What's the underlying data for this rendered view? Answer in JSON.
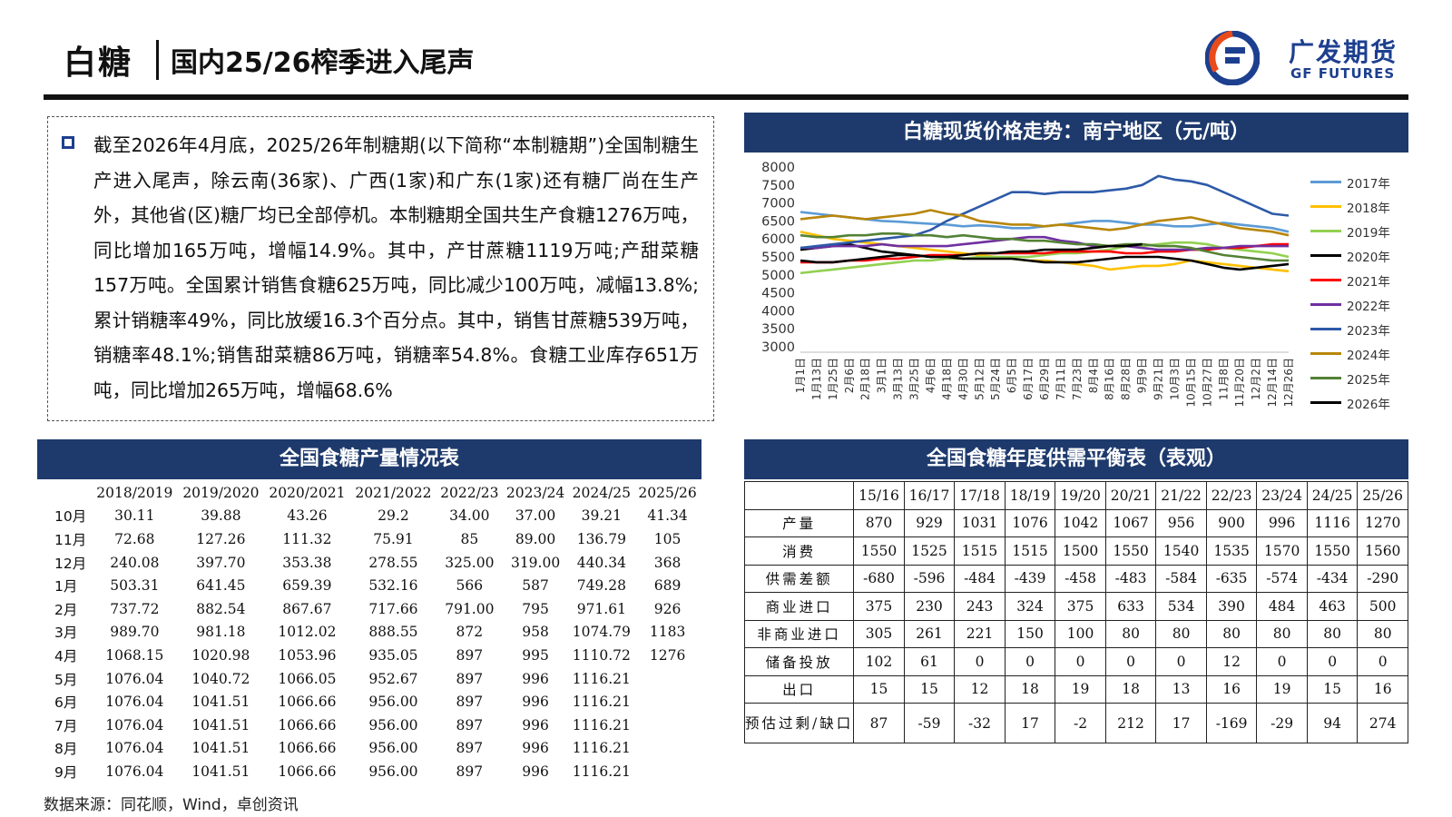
{
  "header": {
    "title": "白糖",
    "subtitle": "国内25/26榨季进入尾声",
    "logo_cn": "广发期货",
    "logo_en": "GF FUTURES"
  },
  "summary": {
    "text": "截至2026年4月底，2025/26年制糖期(以下简称“本制糖期”)全国制糖生产进入尾声，除云南(36家)、广西(1家)和广东(1家)还有糖厂尚在生产外，其他省(区)糖厂均已全部停机。本制糖期全国共生产食糖1276万吨，同比增加165万吨，增幅14.9%。其中，产甘蔗糖1119万吨;产甜菜糖157万吨。全国累计销售食糖625万吨，同比减少100万吨，减幅13.8%;累计销糖率49%，同比放缓16.3个百分点。其中，销售甘蔗糖539万吨，销糖率48.1%;销售甜菜糖86万吨，销糖率54.8%。食糖工业库存651万吨，同比增加265万吨，增幅68.6%"
  },
  "chart": {
    "title": "白糖现货价格走势：南宁地区（元/吨）"
  },
  "chart_data": {
    "type": "line",
    "title": "白糖现货价格走势：南宁地区（元/吨）",
    "ylim": [
      3000,
      8000
    ],
    "y_ticks": [
      "8000",
      "7500",
      "7000",
      "6500",
      "6000",
      "5500",
      "5000",
      "4500",
      "4000",
      "3500",
      "3000"
    ],
    "x_tick_labels": [
      "1月1日",
      "1月13日",
      "1月25日",
      "2月6日",
      "2月18日",
      "3月1日",
      "3月13日",
      "3月25日",
      "4月6日",
      "4月18日",
      "4月30日",
      "5月12日",
      "5月24日",
      "6月5日",
      "6月17日",
      "6月29日",
      "7月11日",
      "7月23日",
      "8月4日",
      "8月16日",
      "8月28日",
      "9月9日",
      "9月21日",
      "10月3日",
      "10月15日",
      "10月27日",
      "11月8日",
      "11月20日",
      "12月2日",
      "12月14日",
      "12月26日"
    ],
    "legend_position": "right",
    "grid": false,
    "series": [
      {
        "name": "2017年",
        "color": "#5b9bd5",
        "values": [
          6750,
          6700,
          6650,
          6600,
          6550,
          6500,
          6480,
          6450,
          6420,
          6400,
          6350,
          6380,
          6350,
          6300,
          6300,
          6350,
          6400,
          6450,
          6500,
          6500,
          6450,
          6400,
          6400,
          6350,
          6350,
          6400,
          6450,
          6400,
          6350,
          6300,
          6200
        ]
      },
      {
        "name": "2018年",
        "color": "#ffc000",
        "values": [
          6200,
          6100,
          6000,
          5950,
          5900,
          5850,
          5800,
          5750,
          5700,
          5650,
          5600,
          5550,
          5500,
          5450,
          5400,
          5400,
          5350,
          5300,
          5250,
          5150,
          5200,
          5250,
          5250,
          5300,
          5400,
          5350,
          5300,
          5250,
          5200,
          5150,
          5100
        ]
      },
      {
        "name": "2019年",
        "color": "#92d050",
        "values": [
          5050,
          5100,
          5150,
          5200,
          5250,
          5300,
          5350,
          5400,
          5400,
          5450,
          5450,
          5500,
          5500,
          5500,
          5500,
          5550,
          5600,
          5600,
          5650,
          5700,
          5800,
          5800,
          5850,
          5900,
          5900,
          5850,
          5750,
          5700,
          5650,
          5600,
          5500
        ]
      },
      {
        "name": "2020年",
        "color": "#000000",
        "values": [
          5700,
          5750,
          5800,
          5850,
          5750,
          5650,
          5600,
          5550,
          5500,
          5500,
          5450,
          5450,
          5450,
          5450,
          5400,
          5350,
          5350,
          5350,
          5400,
          5450,
          5500,
          5500,
          5500,
          5450,
          5400,
          5300,
          5200,
          5150,
          5200,
          5250,
          5300
        ]
      },
      {
        "name": "2021年",
        "color": "#ff0000",
        "values": [
          5350,
          5350,
          5350,
          5400,
          5400,
          5450,
          5450,
          5500,
          5550,
          5550,
          5550,
          5600,
          5600,
          5600,
          5600,
          5600,
          5650,
          5650,
          5650,
          5650,
          5600,
          5600,
          5650,
          5650,
          5700,
          5700,
          5750,
          5750,
          5800,
          5850,
          5850
        ]
      },
      {
        "name": "2022年",
        "color": "#7030a0",
        "values": [
          5750,
          5750,
          5800,
          5800,
          5800,
          5850,
          5800,
          5800,
          5800,
          5800,
          5850,
          5900,
          5950,
          6000,
          6050,
          6050,
          5950,
          5900,
          5800,
          5800,
          5800,
          5750,
          5700,
          5700,
          5700,
          5750,
          5750,
          5800,
          5800,
          5800,
          5800
        ]
      },
      {
        "name": "2023年",
        "color": "#2e5aa8",
        "values": [
          5750,
          5800,
          5850,
          5900,
          5950,
          6000,
          6050,
          6100,
          6250,
          6500,
          6700,
          6900,
          7100,
          7300,
          7300,
          7250,
          7300,
          7300,
          7300,
          7350,
          7400,
          7500,
          7750,
          7650,
          7600,
          7500,
          7300,
          7100,
          6900,
          6700,
          6650
        ]
      },
      {
        "name": "2024年",
        "color": "#b8860b",
        "values": [
          6550,
          6600,
          6650,
          6600,
          6550,
          6600,
          6650,
          6700,
          6800,
          6700,
          6650,
          6500,
          6450,
          6400,
          6400,
          6350,
          6400,
          6350,
          6300,
          6250,
          6300,
          6400,
          6500,
          6550,
          6600,
          6500,
          6400,
          6300,
          6250,
          6200,
          6100
        ]
      },
      {
        "name": "2025年",
        "color": "#548235",
        "values": [
          6100,
          6050,
          6050,
          6100,
          6100,
          6150,
          6150,
          6100,
          6100,
          6050,
          6100,
          6050,
          6000,
          6000,
          5950,
          5950,
          5900,
          5850,
          5850,
          5800,
          5850,
          5850,
          5800,
          5800,
          5750,
          5650,
          5550,
          5500,
          5450,
          5400,
          5400
        ]
      },
      {
        "name": "2026年",
        "color": "#000000",
        "values": [
          5400,
          5350,
          5350,
          5400,
          5450,
          5500,
          5550,
          5550,
          5500,
          5500,
          5550,
          5600,
          5600,
          5650,
          5650,
          5700,
          5700,
          5700,
          5750,
          5800,
          5800,
          5850
        ]
      }
    ]
  },
  "production_table": {
    "title": "全国食糖产量情况表",
    "columns": [
      "",
      "2018/2019",
      "2019/2020",
      "2020/2021",
      "2021/2022",
      "2022/23",
      "2023/24",
      "2024/25",
      "2025/26"
    ],
    "rows": [
      [
        "10月",
        "30.11",
        "39.88",
        "43.26",
        "29.2",
        "34.00",
        "37.00",
        "39.21",
        "41.34"
      ],
      [
        "11月",
        "72.68",
        "127.26",
        "111.32",
        "75.91",
        "85",
        "89.00",
        "136.79",
        "105"
      ],
      [
        "12月",
        "240.08",
        "397.70",
        "353.38",
        "278.55",
        "325.00",
        "319.00",
        "440.34",
        "368"
      ],
      [
        "1月",
        "503.31",
        "641.45",
        "659.39",
        "532.16",
        "566",
        "587",
        "749.28",
        "689"
      ],
      [
        "2月",
        "737.72",
        "882.54",
        "867.67",
        "717.66",
        "791.00",
        "795",
        "971.61",
        "926"
      ],
      [
        "3月",
        "989.70",
        "981.18",
        "1012.02",
        "888.55",
        "872",
        "958",
        "1074.79",
        "1183"
      ],
      [
        "4月",
        "1068.15",
        "1020.98",
        "1053.96",
        "935.05",
        "897",
        "995",
        "1110.72",
        "1276"
      ],
      [
        "5月",
        "1076.04",
        "1040.72",
        "1066.05",
        "952.67",
        "897",
        "996",
        "1116.21",
        ""
      ],
      [
        "6月",
        "1076.04",
        "1041.51",
        "1066.66",
        "956.00",
        "897",
        "996",
        "1116.21",
        ""
      ],
      [
        "7月",
        "1076.04",
        "1041.51",
        "1066.66",
        "956.00",
        "897",
        "996",
        "1116.21",
        ""
      ],
      [
        "8月",
        "1076.04",
        "1041.51",
        "1066.66",
        "956.00",
        "897",
        "996",
        "1116.21",
        ""
      ],
      [
        "9月",
        "1076.04",
        "1041.51",
        "1066.66",
        "956.00",
        "897",
        "996",
        "1116.21",
        ""
      ]
    ]
  },
  "balance_table": {
    "title": "全国食糖年度供需平衡表（表观）",
    "columns": [
      "",
      "15/16",
      "16/17",
      "17/18",
      "18/19",
      "19/20",
      "20/21",
      "21/22",
      "22/23",
      "23/24",
      "24/25",
      "25/26"
    ],
    "rows": [
      [
        "产量",
        "870",
        "929",
        "1031",
        "1076",
        "1042",
        "1067",
        "956",
        "900",
        "996",
        "1116",
        "1270"
      ],
      [
        "消费",
        "1550",
        "1525",
        "1515",
        "1515",
        "1500",
        "1550",
        "1540",
        "1535",
        "1570",
        "1550",
        "1560"
      ],
      [
        "供需差额",
        "-680",
        "-596",
        "-484",
        "-439",
        "-458",
        "-483",
        "-584",
        "-635",
        "-574",
        "-434",
        "-290"
      ],
      [
        "商业进口",
        "375",
        "230",
        "243",
        "324",
        "375",
        "633",
        "534",
        "390",
        "484",
        "463",
        "500"
      ],
      [
        "非商业进口",
        "305",
        "261",
        "221",
        "150",
        "100",
        "80",
        "80",
        "80",
        "80",
        "80",
        "80"
      ],
      [
        "储备投放",
        "102",
        "61",
        "0",
        "0",
        "0",
        "0",
        "0",
        "12",
        "0",
        "0",
        "0"
      ],
      [
        "出口",
        "15",
        "15",
        "12",
        "18",
        "19",
        "18",
        "13",
        "16",
        "19",
        "15",
        "16"
      ],
      [
        "预估过剩/缺口",
        "87",
        "-59",
        "-32",
        "17",
        "-2",
        "212",
        "17",
        "-169",
        "-29",
        "94",
        "274"
      ]
    ]
  },
  "footer": {
    "source": "数据来源：同花顺，Wind，卓创资讯"
  }
}
